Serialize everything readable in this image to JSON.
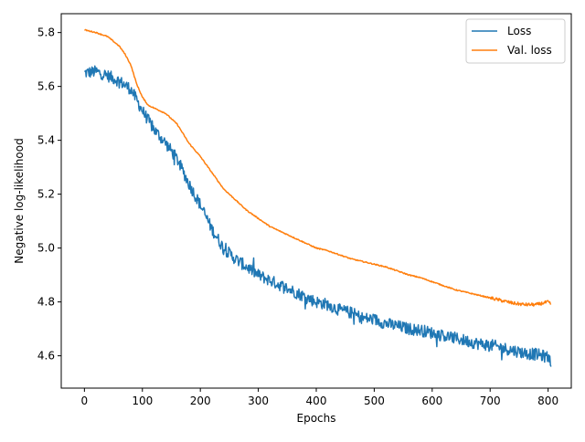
{
  "chart_data": {
    "type": "line",
    "title": "",
    "xlabel": "Epochs",
    "ylabel": "Negative log-likelihood",
    "xlim": [
      -40,
      840
    ],
    "ylim": [
      4.48,
      5.87
    ],
    "xticks": [
      0,
      100,
      200,
      300,
      400,
      500,
      600,
      700,
      800
    ],
    "yticks": [
      4.6,
      4.8,
      5.0,
      5.2,
      5.4,
      5.6,
      5.8
    ],
    "ytick_labels": [
      "4.6",
      "4.8",
      "5.0",
      "5.2",
      "5.4",
      "5.6",
      "5.8"
    ],
    "grid": false,
    "legend_position": "top-right",
    "series": [
      {
        "name": "Loss",
        "color": "#1f77b4",
        "noise": "high",
        "x": [
          0,
          20,
          40,
          60,
          80,
          100,
          120,
          140,
          160,
          180,
          200,
          220,
          240,
          260,
          280,
          300,
          320,
          340,
          360,
          380,
          400,
          420,
          440,
          460,
          480,
          500,
          520,
          540,
          560,
          580,
          600,
          620,
          640,
          660,
          680,
          700,
          720,
          740,
          760,
          780,
          800,
          805
        ],
        "values": [
          5.65,
          5.655,
          5.64,
          5.62,
          5.59,
          5.51,
          5.44,
          5.39,
          5.33,
          5.24,
          5.16,
          5.07,
          5.0,
          4.96,
          4.93,
          4.9,
          4.88,
          4.86,
          4.84,
          4.82,
          4.8,
          4.79,
          4.77,
          4.76,
          4.74,
          4.735,
          4.72,
          4.71,
          4.7,
          4.695,
          4.685,
          4.675,
          4.665,
          4.655,
          4.645,
          4.64,
          4.63,
          4.62,
          4.61,
          4.605,
          4.595,
          4.58
        ]
      },
      {
        "name": "Val. loss",
        "color": "#ff7f0e",
        "noise": "low",
        "x": [
          0,
          20,
          40,
          60,
          70,
          80,
          90,
          100,
          110,
          120,
          140,
          160,
          180,
          200,
          220,
          240,
          260,
          280,
          300,
          320,
          340,
          360,
          380,
          400,
          420,
          440,
          460,
          480,
          500,
          520,
          540,
          560,
          580,
          600,
          620,
          640,
          660,
          680,
          700,
          720,
          740,
          760,
          780,
          800,
          805
        ],
        "values": [
          5.81,
          5.8,
          5.785,
          5.75,
          5.72,
          5.68,
          5.61,
          5.56,
          5.53,
          5.52,
          5.5,
          5.46,
          5.39,
          5.34,
          5.28,
          5.22,
          5.18,
          5.14,
          5.11,
          5.08,
          5.06,
          5.04,
          5.02,
          5.0,
          4.99,
          4.975,
          4.96,
          4.95,
          4.94,
          4.93,
          4.915,
          4.9,
          4.89,
          4.875,
          4.86,
          4.845,
          4.835,
          4.825,
          4.815,
          4.805,
          4.795,
          4.79,
          4.79,
          4.8,
          4.79
        ]
      }
    ]
  }
}
